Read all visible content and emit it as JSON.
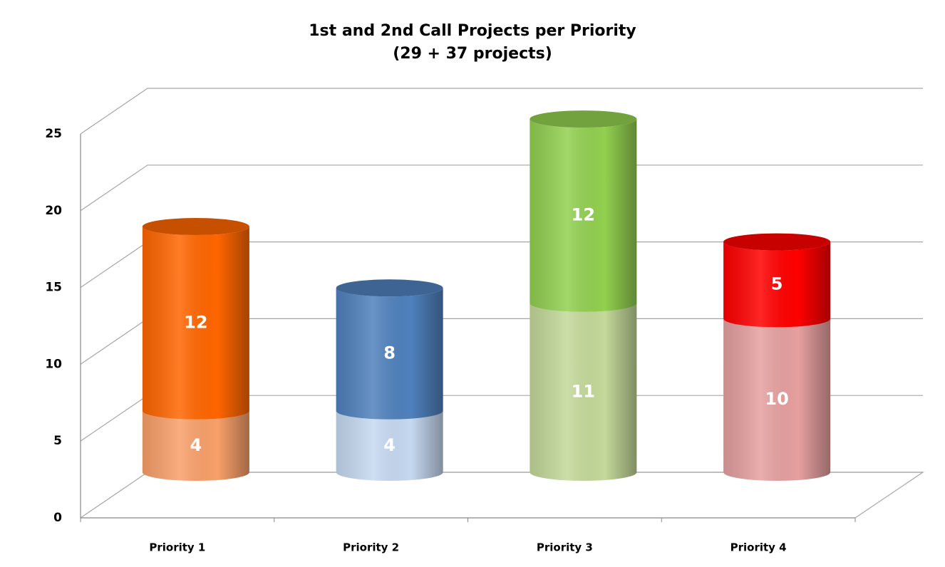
{
  "chart_data": {
    "type": "bar",
    "stacked": true,
    "three_d": true,
    "title": "1st and 2nd Call Projects per Priority",
    "subtitle": "(29 + 37 projects)",
    "categories": [
      "Priority 1",
      "Priority 2",
      "Priority 3",
      "Priority 4"
    ],
    "series": [
      {
        "colors": [
          "#f9a06a",
          "#c6d9f1",
          "#c4d99a",
          "#e6a0a0"
        ],
        "values": [
          4,
          4,
          11,
          10
        ]
      },
      {
        "colors": [
          "#ff6600",
          "#4f81bd",
          "#92d050",
          "#ff0000"
        ],
        "values": [
          12,
          8,
          12,
          5
        ]
      }
    ],
    "ylim": [
      0,
      25
    ],
    "yticks": [
      0,
      5,
      10,
      15,
      20,
      25
    ],
    "grid": true
  }
}
